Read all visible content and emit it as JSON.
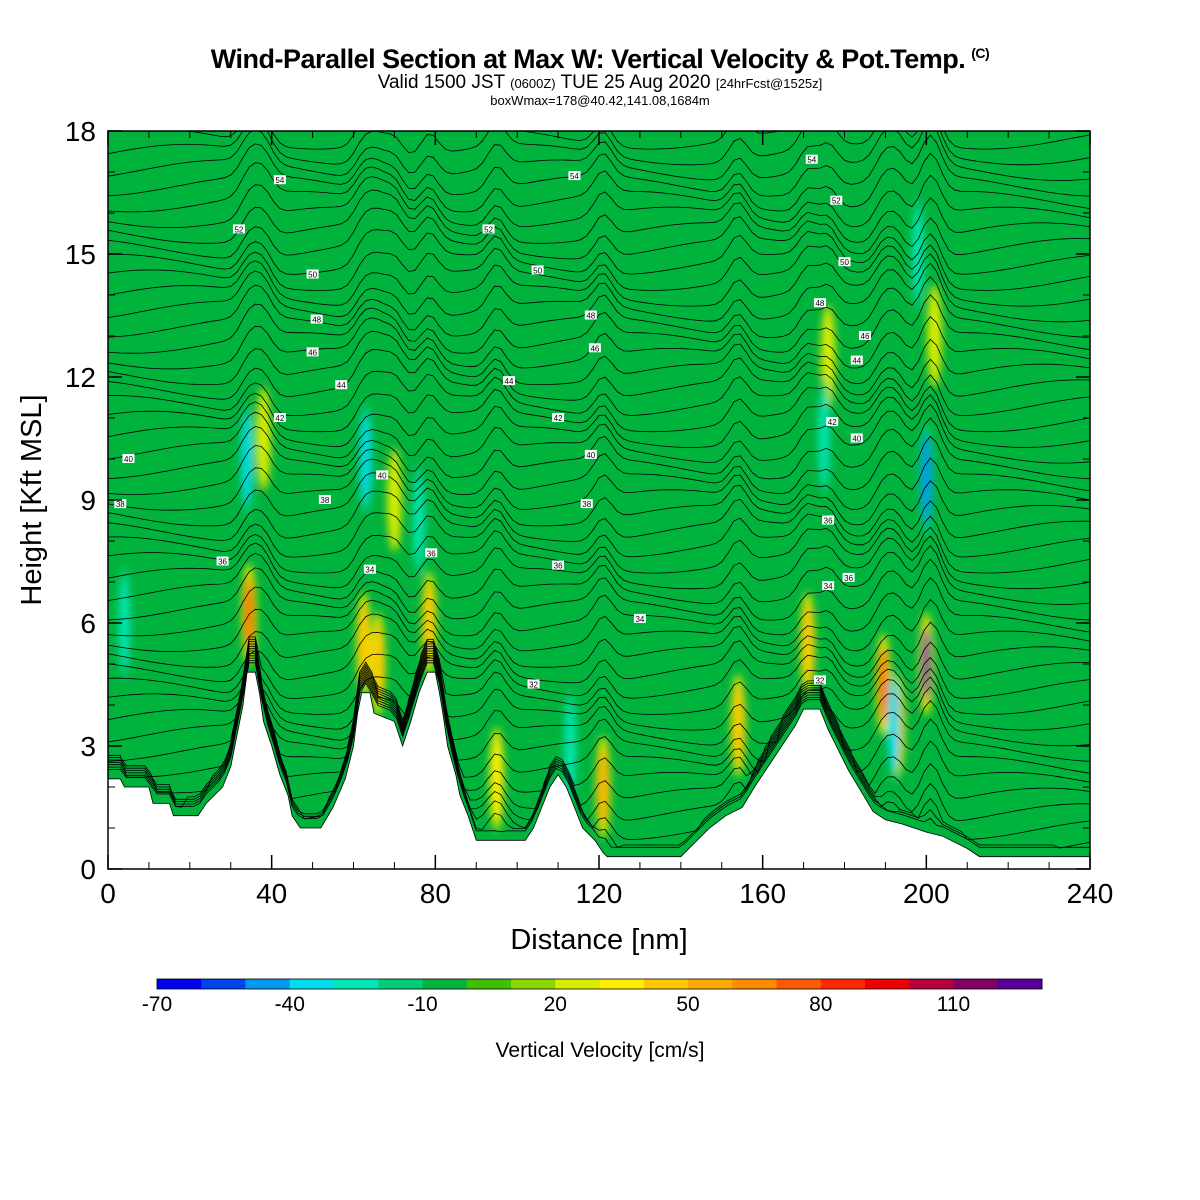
{
  "title": "Wind-Parallel Section at Max W: Vertical Velocity & Pot.Temp.",
  "title_mark": "(C)",
  "subtitle": {
    "valid": "Valid 1500 JST",
    "utc": "(0600Z)",
    "date": "TUE 25 Aug 2020",
    "forecast": "[24hrFcst@1525z]"
  },
  "subtitle2": "boxWmax=178@40.42,141.08,1684m",
  "chart_data": {
    "type": "heatmap",
    "xlabel": "Distance [nm]",
    "ylabel": "Height [Kft MSL]",
    "xlim": [
      0,
      240
    ],
    "ylim": [
      0,
      18
    ],
    "x_ticks": [
      "0",
      "40",
      "80",
      "120",
      "160",
      "200",
      "240"
    ],
    "y_ticks": [
      "0",
      "3",
      "6",
      "9",
      "12",
      "15",
      "18"
    ],
    "colorbar": {
      "label": "Vertical Velocity [cm/s]",
      "range": [
        -70,
        130
      ],
      "tick_values": [
        -70,
        -40,
        -10,
        20,
        50,
        80,
        110
      ],
      "tick_labels": [
        "-70",
        "-40",
        "-10",
        "20",
        "50",
        "80",
        "110"
      ],
      "colors": [
        "#0000ee",
        "#0044ee",
        "#0099ee",
        "#00ddee",
        "#00e6b4",
        "#00cc78",
        "#00b33c",
        "#3fbf00",
        "#8cd600",
        "#d9ec00",
        "#ffee00",
        "#ffc800",
        "#ffaa00",
        "#ff8c00",
        "#ff5a00",
        "#ff2800",
        "#ee0000",
        "#b4003c",
        "#820064",
        "#5a0096"
      ]
    },
    "terrain_profile": [
      [
        0,
        2.2
      ],
      [
        3,
        2.2
      ],
      [
        4,
        2.0
      ],
      [
        10,
        2.0
      ],
      [
        11,
        1.6
      ],
      [
        15,
        1.6
      ],
      [
        16,
        1.3
      ],
      [
        22,
        1.3
      ],
      [
        24,
        1.6
      ],
      [
        28,
        2.0
      ],
      [
        30,
        2.5
      ],
      [
        32,
        3.5
      ],
      [
        33,
        4.0
      ],
      [
        34,
        4.8
      ],
      [
        36,
        4.8
      ],
      [
        37,
        4.3
      ],
      [
        38,
        3.6
      ],
      [
        40,
        3.0
      ],
      [
        42,
        2.3
      ],
      [
        44,
        1.8
      ],
      [
        45,
        1.3
      ],
      [
        47,
        1.0
      ],
      [
        52,
        1.0
      ],
      [
        55,
        1.5
      ],
      [
        58,
        2.2
      ],
      [
        60,
        3.0
      ],
      [
        61,
        3.8
      ],
      [
        62,
        4.3
      ],
      [
        64,
        4.3
      ],
      [
        65,
        3.8
      ],
      [
        70,
        3.6
      ],
      [
        72,
        3.0
      ],
      [
        74,
        3.6
      ],
      [
        76,
        4.3
      ],
      [
        78,
        4.8
      ],
      [
        80,
        4.8
      ],
      [
        81,
        4.3
      ],
      [
        82,
        3.7
      ],
      [
        83,
        3.0
      ],
      [
        85,
        2.3
      ],
      [
        86,
        1.8
      ],
      [
        88,
        1.3
      ],
      [
        90,
        0.7
      ],
      [
        102,
        0.7
      ],
      [
        104,
        1.0
      ],
      [
        106,
        1.5
      ],
      [
        108,
        2.0
      ],
      [
        110,
        2.3
      ],
      [
        112,
        2.0
      ],
      [
        114,
        1.5
      ],
      [
        116,
        1.0
      ],
      [
        119,
        0.7
      ],
      [
        121,
        0.4
      ],
      [
        122,
        0.3
      ],
      [
        140,
        0.3
      ],
      [
        143,
        0.6
      ],
      [
        147,
        1.0
      ],
      [
        151,
        1.3
      ],
      [
        155,
        1.5
      ],
      [
        158,
        2.0
      ],
      [
        162,
        2.6
      ],
      [
        166,
        3.2
      ],
      [
        168,
        3.5
      ],
      [
        170,
        3.9
      ],
      [
        174,
        3.9
      ],
      [
        176,
        3.4
      ],
      [
        178,
        3.0
      ],
      [
        181,
        2.4
      ],
      [
        184,
        1.9
      ],
      [
        187,
        1.4
      ],
      [
        190,
        1.2
      ],
      [
        194,
        1.1
      ],
      [
        197,
        1.0
      ],
      [
        200,
        0.9
      ],
      [
        204,
        0.8
      ],
      [
        210,
        0.5
      ],
      [
        213,
        0.3
      ],
      [
        240,
        0.3
      ]
    ],
    "updraft_cores": [
      {
        "x": 34.5,
        "z": 6.2,
        "w": 70
      },
      {
        "x": 38,
        "z": 10.5,
        "w": 25
      },
      {
        "x": 62.5,
        "z": 5.5,
        "w": 45
      },
      {
        "x": 66,
        "z": 5.0,
        "w": 40
      },
      {
        "x": 70,
        "z": 9.0,
        "w": 25
      },
      {
        "x": 78.5,
        "z": 6.0,
        "w": 45
      },
      {
        "x": 95,
        "z": 2.2,
        "w": 35
      },
      {
        "x": 121,
        "z": 2.0,
        "w": 50
      },
      {
        "x": 154,
        "z": 3.5,
        "w": 40
      },
      {
        "x": 171,
        "z": 5.5,
        "w": 45
      },
      {
        "x": 176,
        "z": 12.5,
        "w": 25
      },
      {
        "x": 189.5,
        "z": 4.5,
        "w": 70
      },
      {
        "x": 193,
        "z": 3.5,
        "w": 50
      },
      {
        "x": 200,
        "z": 5.0,
        "w": 130
      },
      {
        "x": 202,
        "z": 13.0,
        "w": 25
      }
    ],
    "downdraft_cores": [
      {
        "x": 34,
        "z": 10.0,
        "w": -40
      },
      {
        "x": 63,
        "z": 10.0,
        "w": -35
      },
      {
        "x": 76,
        "z": 8.5,
        "w": -25
      },
      {
        "x": 113,
        "z": 3.0,
        "w": -30
      },
      {
        "x": 175,
        "z": 10.5,
        "w": -30
      },
      {
        "x": 192,
        "z": 3.5,
        "w": -40
      },
      {
        "x": 200,
        "z": 9.5,
        "w": -50
      },
      {
        "x": 198,
        "z": 15.0,
        "w": -30
      },
      {
        "x": 4,
        "z": 6.0,
        "w": -25
      }
    ],
    "potential_temperature": {
      "interval": 1,
      "labeled_contours": [
        {
          "label": "32",
          "x": 104,
          "z": 4.5
        },
        {
          "label": "32",
          "x": 174,
          "z": 4.6
        },
        {
          "label": "34",
          "x": 130,
          "z": 6.1
        },
        {
          "label": "34",
          "x": 64,
          "z": 7.3
        },
        {
          "label": "34",
          "x": 176,
          "z": 6.9
        },
        {
          "label": "36",
          "x": 28,
          "z": 7.5
        },
        {
          "label": "36",
          "x": 110,
          "z": 7.4
        },
        {
          "label": "36",
          "x": 79,
          "z": 7.7
        },
        {
          "label": "36",
          "x": 181,
          "z": 7.1
        },
        {
          "label": "36",
          "x": 176,
          "z": 8.5
        },
        {
          "label": "38",
          "x": 53,
          "z": 9.0
        },
        {
          "label": "38",
          "x": 117,
          "z": 8.9
        },
        {
          "label": "38",
          "x": 3,
          "z": 8.9
        },
        {
          "label": "40",
          "x": 67,
          "z": 9.6
        },
        {
          "label": "40",
          "x": 118,
          "z": 10.1
        },
        {
          "label": "40",
          "x": 183,
          "z": 10.5
        },
        {
          "label": "40",
          "x": 5,
          "z": 10.0
        },
        {
          "label": "42",
          "x": 42,
          "z": 11.0
        },
        {
          "label": "42",
          "x": 110,
          "z": 11.0
        },
        {
          "label": "42",
          "x": 177,
          "z": 10.9
        },
        {
          "label": "44",
          "x": 57,
          "z": 11.8
        },
        {
          "label": "44",
          "x": 98,
          "z": 11.9
        },
        {
          "label": "44",
          "x": 183,
          "z": 12.4
        },
        {
          "label": "46",
          "x": 50,
          "z": 12.6
        },
        {
          "label": "46",
          "x": 119,
          "z": 12.7
        },
        {
          "label": "46",
          "x": 185,
          "z": 13.0
        },
        {
          "label": "48",
          "x": 51,
          "z": 13.4
        },
        {
          "label": "48",
          "x": 118,
          "z": 13.5
        },
        {
          "label": "48",
          "x": 174,
          "z": 13.8
        },
        {
          "label": "50",
          "x": 50,
          "z": 14.5
        },
        {
          "label": "50",
          "x": 105,
          "z": 14.6
        },
        {
          "label": "50",
          "x": 180,
          "z": 14.8
        },
        {
          "label": "52",
          "x": 32,
          "z": 15.6
        },
        {
          "label": "52",
          "x": 93,
          "z": 15.6
        },
        {
          "label": "52",
          "x": 178,
          "z": 16.3
        },
        {
          "label": "54",
          "x": 42,
          "z": 16.8
        },
        {
          "label": "54",
          "x": 114,
          "z": 16.9
        },
        {
          "label": "54",
          "x": 172,
          "z": 17.3
        }
      ]
    }
  }
}
